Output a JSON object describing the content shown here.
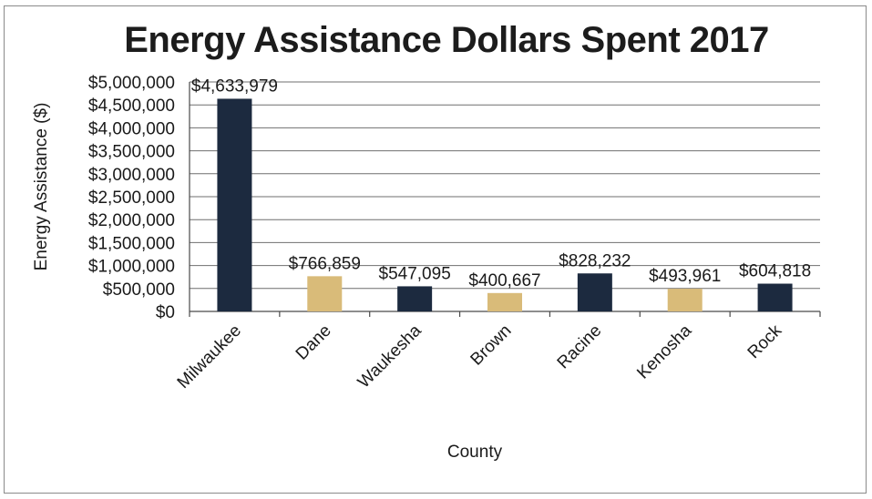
{
  "chart_data": {
    "type": "bar",
    "title": "Energy Assistance Dollars Spent 2017",
    "xlabel": "County",
    "ylabel": "Energy Assistance ($)",
    "ylim": [
      0,
      5000000
    ],
    "ytick_step": 500000,
    "ytick_labels": [
      "$0",
      "$500,000",
      "$1,000,000",
      "$1,500,000",
      "$2,000,000",
      "$2,500,000",
      "$3,000,000",
      "$3,500,000",
      "$4,000,000",
      "$4,500,000",
      "$5,000,000"
    ],
    "categories": [
      "Milwaukee",
      "Dane",
      "Waukesha",
      "Brown",
      "Racine",
      "Kenosha",
      "Rock"
    ],
    "values": [
      4633979,
      766859,
      547095,
      400667,
      828232,
      493961,
      604818
    ],
    "data_labels": [
      "$4,633,979",
      "$766,859",
      "$547,095",
      "$400,667",
      "$828,232",
      "$493,961",
      "$604,818"
    ],
    "bar_colors": [
      "#1c2a3f",
      "#d9bb79",
      "#1c2a3f",
      "#d9bb79",
      "#1c2a3f",
      "#d9bb79",
      "#1c2a3f"
    ],
    "grid": true,
    "legend": "none"
  }
}
